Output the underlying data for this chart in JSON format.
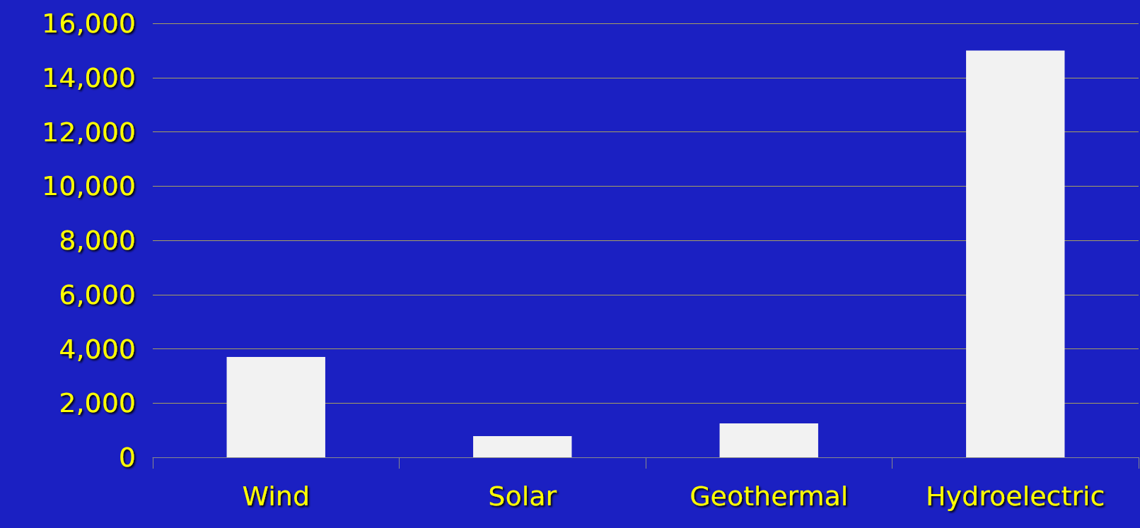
{
  "chart_data": {
    "type": "bar",
    "categories": [
      "Wind",
      "Solar",
      "Geothermal",
      "Hydroelectric"
    ],
    "values": [
      3700,
      780,
      1250,
      15000
    ],
    "color": "#f2f2f2",
    "ylim": [
      0,
      16000
    ],
    "yticks": [
      0,
      {
        "value": 2000,
        "label": "2,000"
      },
      {
        "value": 4000,
        "label": "4,000"
      },
      {
        "value": 6000,
        "label": "6,000"
      },
      {
        "value": 8000,
        "label": "8,000"
      },
      {
        "value": 10000,
        "label": "10,000"
      },
      {
        "value": 12000,
        "label": "12,000"
      },
      {
        "value": 14000,
        "label": "14,000"
      },
      {
        "value": 16000,
        "label": "16,000"
      }
    ],
    "grid": "y"
  }
}
